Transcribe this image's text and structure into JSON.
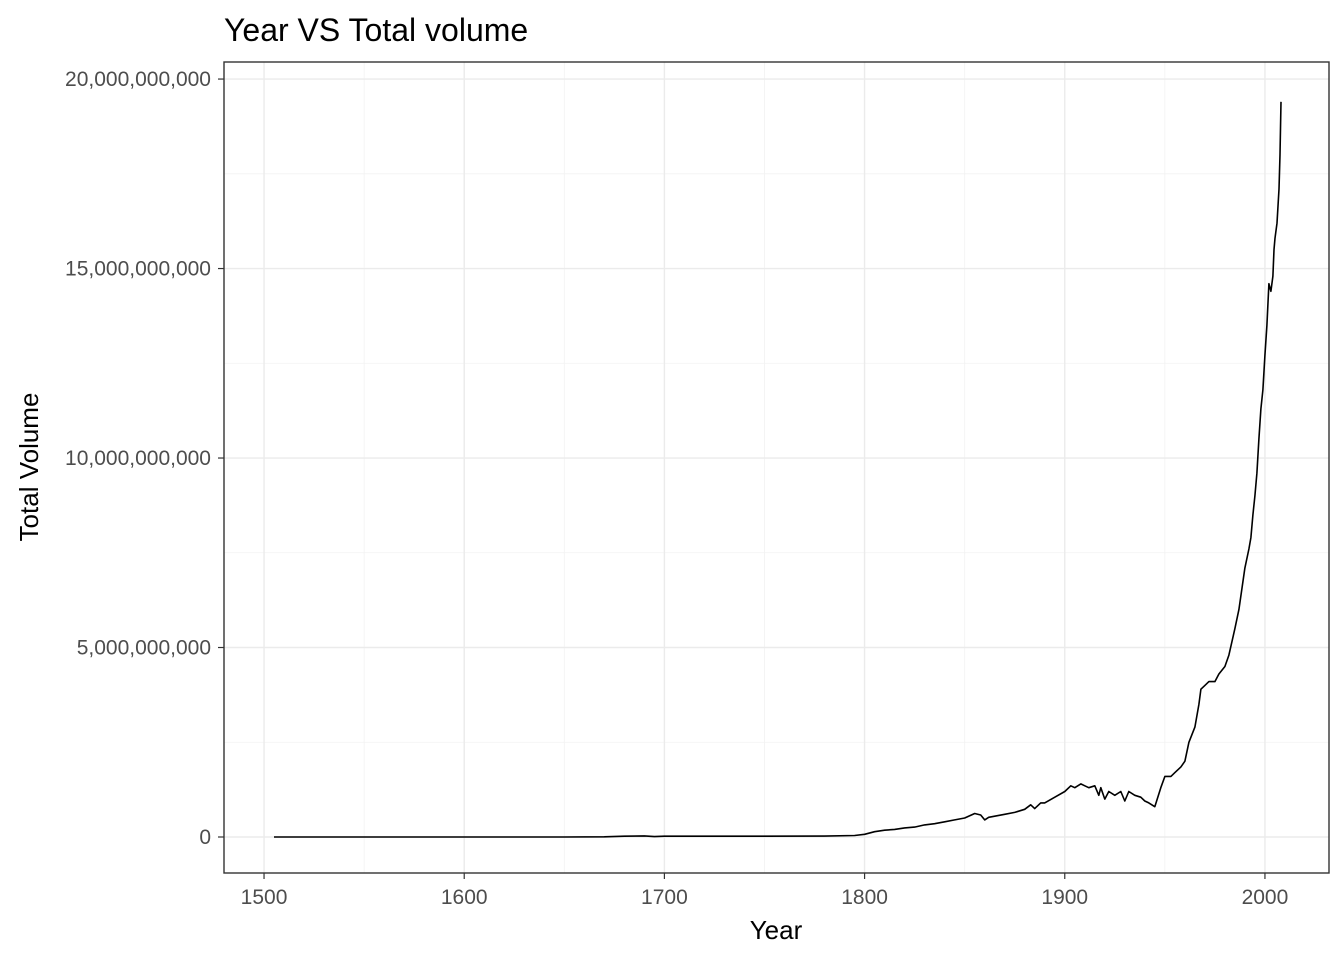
{
  "chart_data": {
    "type": "line",
    "title": "Year VS Total volume",
    "xlabel": "Year",
    "ylabel": "Total Volume",
    "xlim": [
      1480,
      2032
    ],
    "ylim": [
      -950000000,
      20450000000
    ],
    "x_ticks": [
      1500,
      1600,
      1700,
      1800,
      1900,
      2000
    ],
    "x_tick_labels": [
      "1500",
      "1600",
      "1700",
      "1800",
      "1900",
      "2000"
    ],
    "y_ticks": [
      0,
      5000000000,
      10000000000,
      15000000000,
      20000000000
    ],
    "y_tick_labels": [
      "0",
      "5,000,000,000",
      "10,000,000,000",
      "15,000,000,000",
      "20,000,000,000"
    ],
    "grid": true,
    "legend": "none",
    "colors": {
      "line": "#000000",
      "grid": "#ebebeb",
      "border": "#333333"
    },
    "series": [
      {
        "x": [
          1505,
          1550,
          1600,
          1650,
          1670,
          1680,
          1690,
          1695,
          1700,
          1720,
          1750,
          1780,
          1795,
          1800,
          1805,
          1810,
          1815,
          1820,
          1825,
          1830,
          1835,
          1840,
          1845,
          1850,
          1855,
          1858,
          1860,
          1862,
          1865,
          1870,
          1875,
          1880,
          1883,
          1885,
          1888,
          1890,
          1895,
          1900,
          1903,
          1905,
          1908,
          1910,
          1912,
          1915,
          1917,
          1918,
          1920,
          1922,
          1925,
          1928,
          1930,
          1932,
          1935,
          1938,
          1940,
          1942,
          1945,
          1948,
          1950,
          1953,
          1955,
          1958,
          1960,
          1962,
          1965,
          1967,
          1968,
          1970,
          1972,
          1975,
          1977,
          1980,
          1982,
          1985,
          1987,
          1990,
          1992,
          1993,
          1994,
          1995,
          1996,
          1997,
          1998,
          1999,
          2000,
          2001,
          2002,
          2003,
          2004,
          2004.5,
          2005,
          2006,
          2007,
          2007.5,
          2008
        ],
        "values": [
          0,
          0,
          0,
          0,
          5000000,
          20000000,
          30000000,
          10000000,
          20000000,
          20000000,
          20000000,
          25000000,
          40000000,
          70000000,
          140000000,
          180000000,
          200000000,
          240000000,
          260000000,
          320000000,
          350000000,
          400000000,
          450000000,
          500000000,
          620000000,
          580000000,
          450000000,
          520000000,
          550000000,
          600000000,
          650000000,
          730000000,
          850000000,
          750000000,
          900000000,
          900000000,
          1050000000,
          1200000000,
          1350000000,
          1300000000,
          1400000000,
          1350000000,
          1300000000,
          1350000000,
          1100000000,
          1300000000,
          1000000000,
          1200000000,
          1100000000,
          1200000000,
          950000000,
          1200000000,
          1100000000,
          1050000000,
          950000000,
          900000000,
          800000000,
          1300000000,
          1600000000,
          1600000000,
          1700000000,
          1850000000,
          2000000000,
          2500000000,
          2900000000,
          3500000000,
          3900000000,
          4000000000,
          4100000000,
          4100000000,
          4300000000,
          4500000000,
          4800000000,
          5500000000,
          6000000000,
          7100000000,
          7600000000,
          7900000000,
          8500000000,
          9000000000,
          9600000000,
          10500000000,
          11300000000,
          11800000000,
          12700000000,
          13500000000,
          14600000000,
          14400000000,
          14800000000,
          15500000000,
          15800000000,
          16200000000,
          17100000000,
          18000000000,
          19400000000
        ]
      }
    ]
  }
}
